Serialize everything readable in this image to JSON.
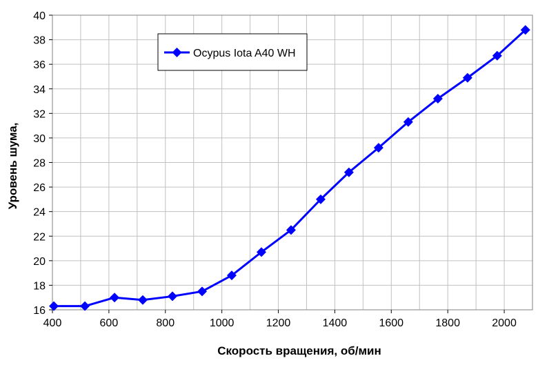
{
  "chart_data": {
    "type": "line",
    "xlabel": "Скорость вращения, об/мин",
    "ylabel": "Уровень шума,",
    "xlim": [
      400,
      2100
    ],
    "ylim": [
      16,
      40
    ],
    "xticks": [
      "400",
      "600",
      "800",
      "1000",
      "1200",
      "1400",
      "1600",
      "1800",
      "2000"
    ],
    "yticks": [
      "16",
      "18",
      "20",
      "22",
      "24",
      "26",
      "28",
      "30",
      "32",
      "34",
      "36",
      "38",
      "40"
    ],
    "grid": true,
    "legend_position": "top-left",
    "series": [
      {
        "name": "Ocypus Iota A40 WH",
        "color": "#0000ff",
        "marker": "diamond",
        "x": [
          405,
          515,
          620,
          720,
          825,
          930,
          1035,
          1140,
          1245,
          1350,
          1450,
          1555,
          1660,
          1765,
          1870,
          1975,
          2075
        ],
        "y": [
          16.3,
          16.3,
          17.0,
          16.8,
          17.1,
          17.5,
          18.8,
          20.7,
          22.5,
          25.0,
          27.2,
          29.2,
          31.3,
          33.2,
          34.9,
          36.7,
          38.8
        ]
      }
    ]
  }
}
